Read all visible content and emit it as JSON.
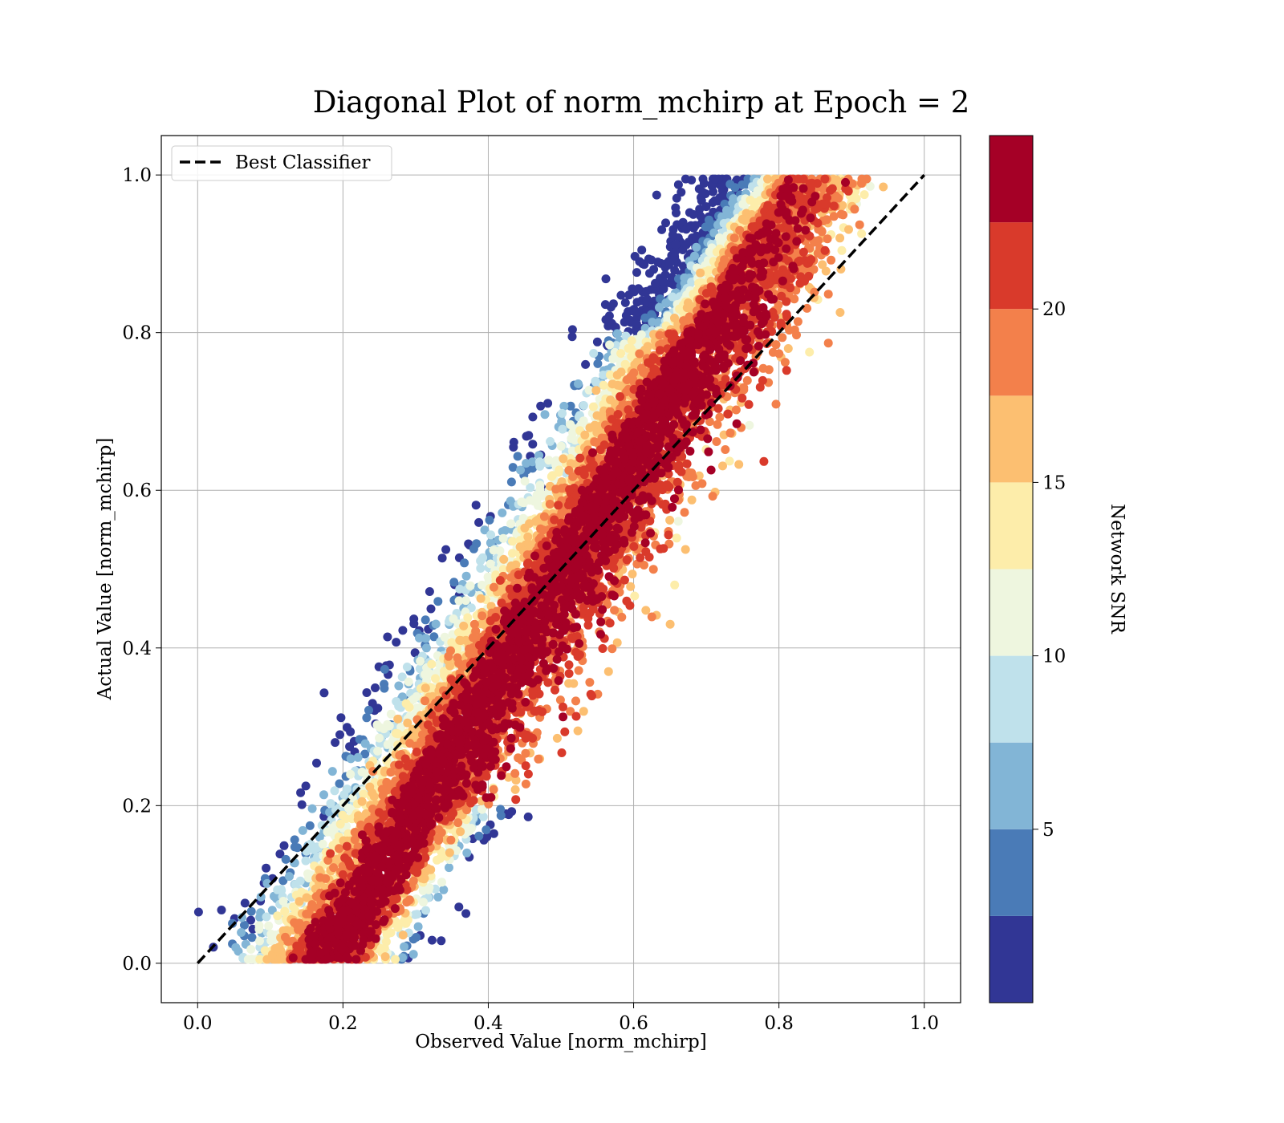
{
  "chart_data": {
    "type": "scatter",
    "title": "Diagonal Plot of norm_mchirp at Epoch = 2",
    "xlabel": "Observed Value [norm_mchirp]",
    "ylabel": "Actual Value [norm_mchirp]",
    "xlim": [
      -0.05,
      1.05
    ],
    "ylim": [
      -0.05,
      1.05
    ],
    "xticks": [
      "0.0",
      "0.2",
      "0.4",
      "0.6",
      "0.8",
      "1.0"
    ],
    "yticks": [
      "0.0",
      "0.2",
      "0.4",
      "0.6",
      "0.8",
      "1.0"
    ],
    "grid": true,
    "legend": {
      "placement": "top-left",
      "entries": [
        "Best Classifier"
      ]
    },
    "reference_line": {
      "name": "Best Classifier",
      "style": "dashed",
      "color": "#000000",
      "x": [
        0.0,
        1.0
      ],
      "y": [
        0.0,
        1.0
      ]
    },
    "colorbar": {
      "label": "Network SNR",
      "range": [
        0,
        25
      ],
      "ticks": [
        "5",
        "10",
        "15",
        "20"
      ],
      "tick_values": [
        5,
        10,
        15,
        20
      ],
      "bands": [
        {
          "from": 0.0,
          "to": 2.5,
          "color": "#313695"
        },
        {
          "from": 2.5,
          "to": 5.0,
          "color": "#4a7bb7"
        },
        {
          "from": 5.0,
          "to": 7.5,
          "color": "#82b5d6"
        },
        {
          "from": 7.5,
          "to": 10.0,
          "color": "#bfe1eb"
        },
        {
          "from": 10.0,
          "to": 12.5,
          "color": "#eef6df"
        },
        {
          "from": 12.5,
          "to": 15.0,
          "color": "#fdedaa"
        },
        {
          "from": 15.0,
          "to": 17.5,
          "color": "#fcbf71"
        },
        {
          "from": 17.5,
          "to": 20.0,
          "color": "#f3804b"
        },
        {
          "from": 20.0,
          "to": 22.5,
          "color": "#d93a2b"
        },
        {
          "from": 22.5,
          "to": 25.0,
          "color": "#a50026"
        }
      ]
    },
    "point_clusters": [
      {
        "snr_band": "high",
        "color": "#a50026",
        "center_line": {
          "x": [
            0.16,
            0.82
          ],
          "y": [
            0.02,
            0.98
          ]
        }
      },
      {
        "snr_band": "mid",
        "color": "#f3804b",
        "note_x_offset": 0.0
      },
      {
        "snr_band": "low",
        "color": "#4a7bb7"
      }
    ]
  }
}
